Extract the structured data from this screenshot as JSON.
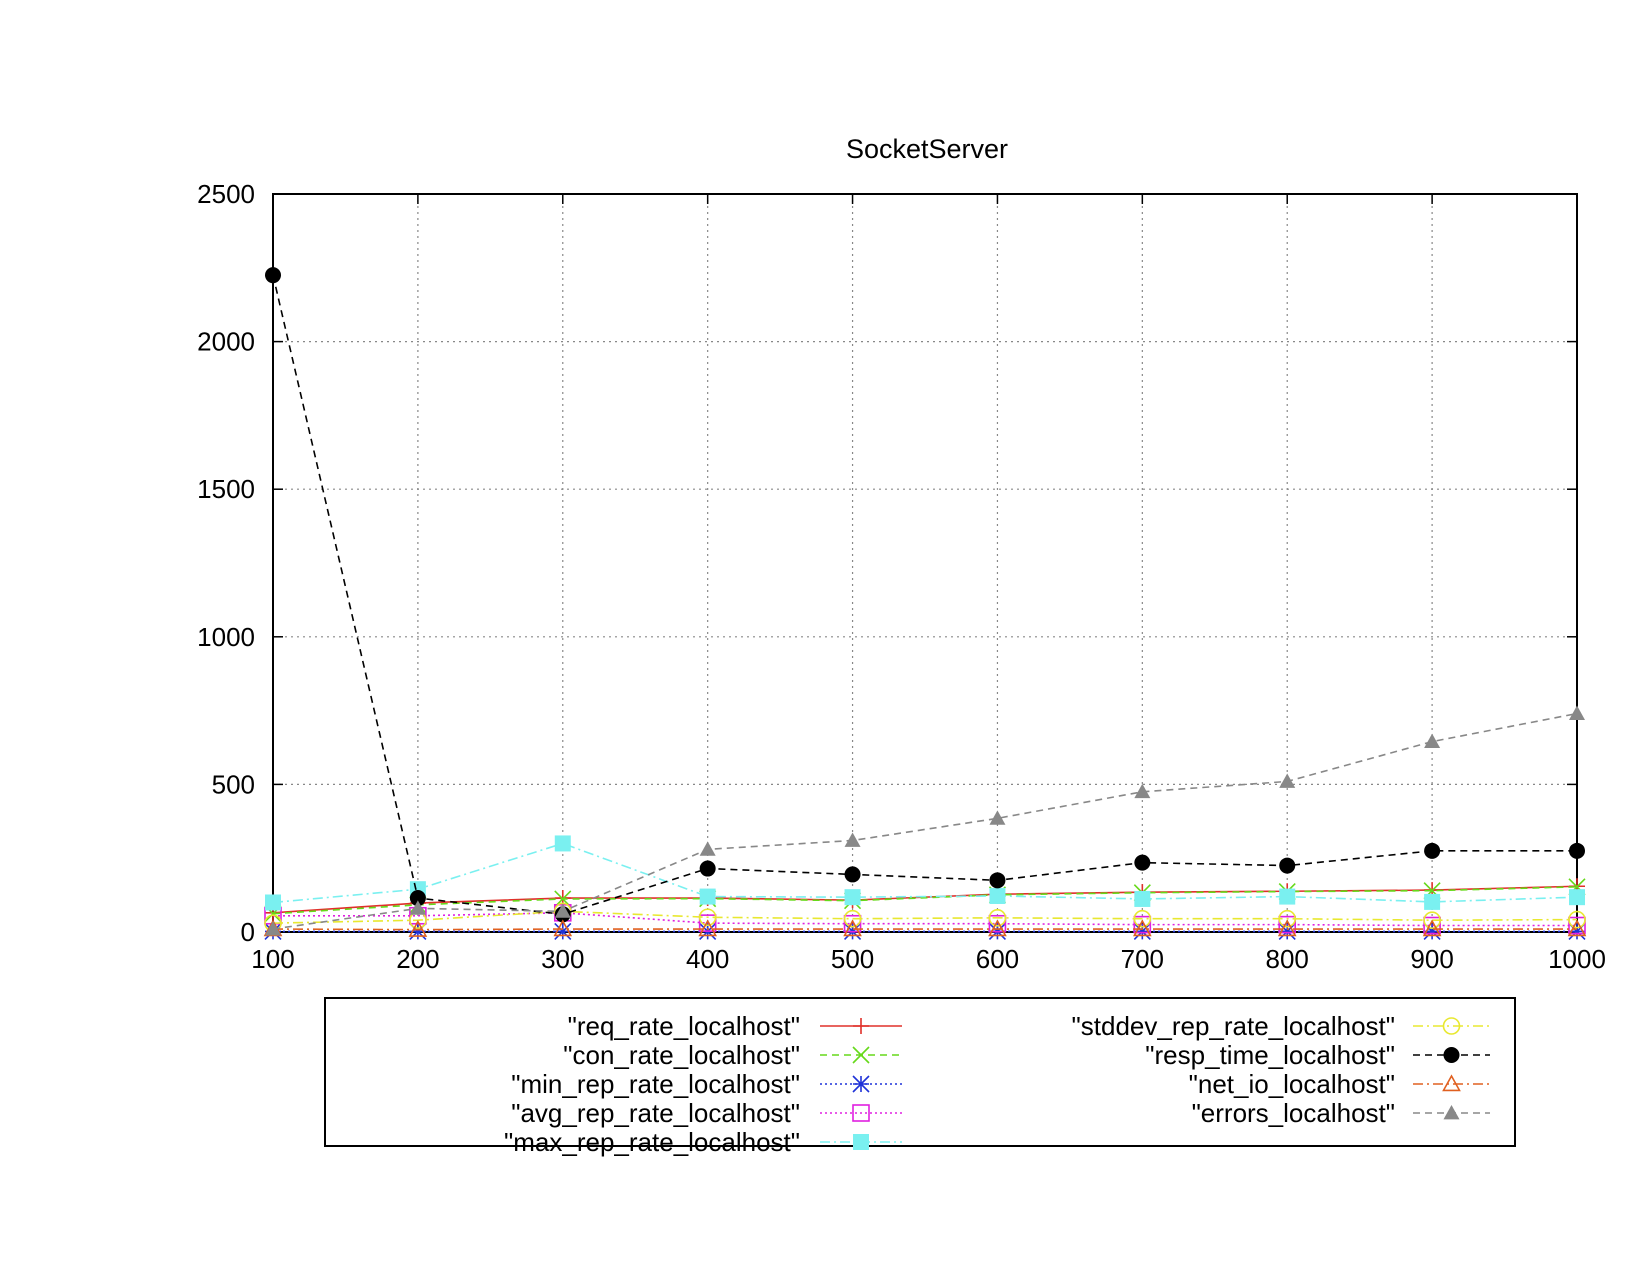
{
  "chart_data": {
    "type": "line",
    "title": "SocketServer",
    "xlabel": "",
    "ylabel": "",
    "x": [
      100,
      200,
      300,
      400,
      500,
      600,
      700,
      800,
      900,
      1000
    ],
    "xlim": [
      100,
      1000
    ],
    "ylim": [
      0,
      2500
    ],
    "xticks": [
      "100",
      "200",
      "300",
      "400",
      "500",
      "600",
      "700",
      "800",
      "900",
      "1000"
    ],
    "yticks": [
      "0",
      "500",
      "1000",
      "1500",
      "2000",
      "2500"
    ],
    "grid": true,
    "legend_position": "bottom",
    "series": [
      {
        "name": "\"req_rate_localhost\"",
        "color": "#e0302a",
        "marker": "plus",
        "dash": "solid",
        "values": [
          65,
          98,
          115,
          115,
          108,
          128,
          135,
          138,
          142,
          155
        ]
      },
      {
        "name": "\"con_rate_localhost\"",
        "color": "#66d91a",
        "marker": "cross",
        "dash": "dashed",
        "values": [
          62,
          92,
          112,
          113,
          106,
          126,
          133,
          137,
          140,
          153
        ]
      },
      {
        "name": "\"min_rep_rate_localhost\"",
        "color": "#1f32d8",
        "marker": "star",
        "dash": "dotted",
        "values": [
          2,
          2,
          2,
          2,
          2,
          2,
          2,
          2,
          2,
          2
        ]
      },
      {
        "name": "\"avg_rep_rate_localhost\"",
        "color": "#e020e0",
        "marker": "square-open",
        "dash": "dotted",
        "values": [
          55,
          55,
          65,
          30,
          28,
          28,
          25,
          25,
          22,
          22
        ]
      },
      {
        "name": "\"max_rep_rate_localhost\"",
        "color": "#7af0f0",
        "marker": "square-filled",
        "dash": "dashdot",
        "values": [
          100,
          145,
          300,
          120,
          118,
          122,
          112,
          120,
          102,
          118
        ]
      },
      {
        "name": "\"stddev_rep_rate_localhost\"",
        "color": "#e8e830",
        "marker": "circle-open",
        "dash": "dashdot",
        "values": [
          30,
          40,
          70,
          50,
          45,
          48,
          45,
          45,
          40,
          42
        ]
      },
      {
        "name": "\"resp_time_localhost\"",
        "color": "#000000",
        "marker": "circle-filled",
        "dash": "dashed",
        "values": [
          2225,
          115,
          60,
          215,
          195,
          175,
          235,
          225,
          275,
          275
        ]
      },
      {
        "name": "\"net_io_localhost\"",
        "color": "#e06020",
        "marker": "triangle-open",
        "dash": "dashdot",
        "values": [
          10,
          8,
          10,
          10,
          10,
          10,
          10,
          10,
          10,
          10
        ]
      },
      {
        "name": "\"errors_localhost\"",
        "color": "#888888",
        "marker": "triangle-filled",
        "dash": "dashed",
        "values": [
          10,
          80,
          70,
          280,
          310,
          385,
          475,
          510,
          645,
          740
        ]
      }
    ]
  }
}
